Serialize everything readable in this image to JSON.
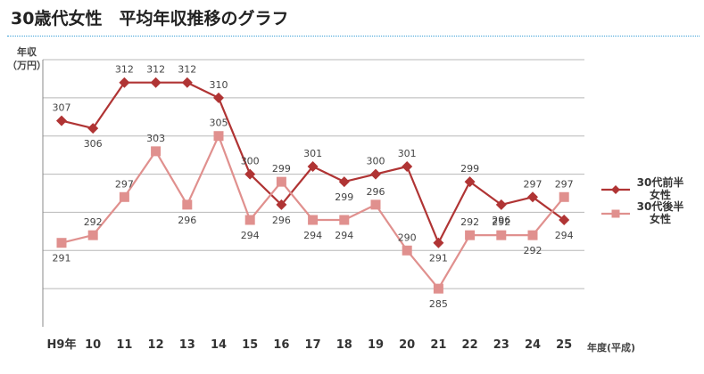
{
  "page": {
    "title": "30歳代女性　平均年収推移のグラフ"
  },
  "colors": {
    "series1": "#b03434",
    "series2": "#e0908e",
    "grid": "#b8b8b8",
    "title_rule": "#3aa0d8"
  },
  "chart_data": {
    "type": "line",
    "title": "30歳代女性　平均年収推移のグラフ",
    "ylabel_lines": [
      "年収",
      "（万円）"
    ],
    "xlabel": "年度(平成)",
    "categories": [
      "H9年",
      "10",
      "11",
      "12",
      "13",
      "14",
      "15",
      "16",
      "17",
      "18",
      "19",
      "20",
      "21",
      "22",
      "23",
      "24",
      "25"
    ],
    "series": [
      {
        "name": "30代前半女性",
        "name_lines": [
          "30代前半",
          "女性"
        ],
        "marker": "diamond",
        "color": "#b03434",
        "values": [
          307,
          306,
          312,
          312,
          312,
          310,
          300,
          296,
          301,
          299,
          300,
          301,
          291,
          299,
          296,
          297,
          294
        ],
        "labels": [
          "307",
          "306",
          "312",
          "312",
          "312",
          "310",
          "300",
          "296",
          "301",
          "299",
          "300",
          "301",
          "291",
          "299",
          "296",
          "297",
          "294"
        ]
      },
      {
        "name": "30代後半女性",
        "name_lines": [
          "30代後半",
          "女性"
        ],
        "marker": "square",
        "color": "#e0908e",
        "values": [
          291,
          292,
          297,
          303,
          296,
          305,
          294,
          299,
          294,
          294,
          296,
          290,
          285,
          292,
          292,
          292,
          297
        ],
        "labels": [
          "291",
          "292",
          "297",
          "303",
          "296",
          "305",
          "294",
          "299",
          "294",
          "294",
          "296",
          "290",
          "285",
          "292",
          "292",
          "292",
          "297"
        ]
      }
    ],
    "ylim": [
      280,
      315
    ],
    "y_gridlines": [
      285,
      290,
      295,
      300,
      305,
      310,
      315
    ],
    "grid": true,
    "legend": "right"
  }
}
